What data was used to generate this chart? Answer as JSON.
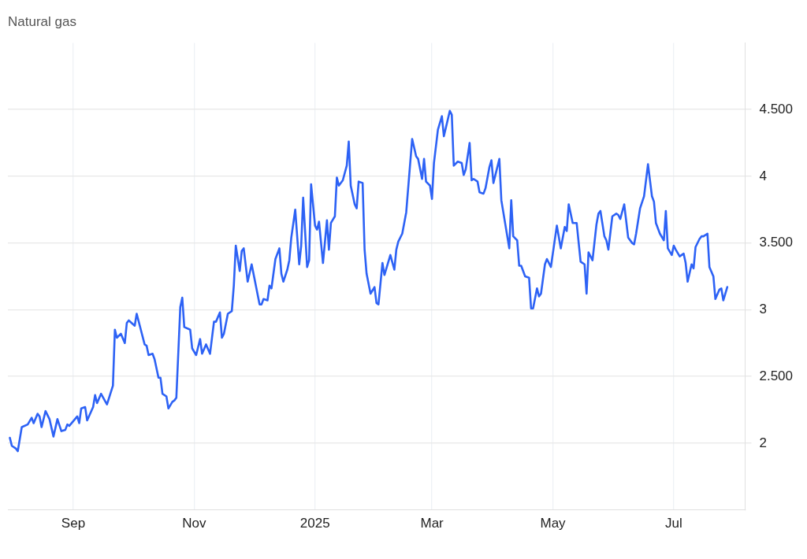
{
  "chart_data": {
    "type": "line",
    "title": "Natural gas",
    "xlim": [
      "2024-07-30",
      "2025-08-06"
    ],
    "xticks": [
      {
        "value": "2024-09",
        "label": "Sep"
      },
      {
        "value": "2024-11",
        "label": "Nov"
      },
      {
        "value": "2025",
        "label": "2025"
      },
      {
        "value": "2025-03",
        "label": "Mar"
      },
      {
        "value": "2025-05",
        "label": "May"
      },
      {
        "value": "2025-07",
        "label": "Jul"
      }
    ],
    "ylim": [
      1.5,
      5
    ],
    "yticks": [
      2,
      {
        "value": 2.5,
        "label": "2.500"
      },
      3,
      {
        "value": 3.5,
        "label": "3.500"
      },
      4,
      {
        "value": 4.5,
        "label": "4.500"
      }
    ],
    "grid": true,
    "legend": false,
    "marker": "none",
    "line_style": "solid",
    "series": [
      {
        "color": "#2d62f5",
        "x": [
          "2024-07-31",
          "2024-08-01",
          "2024-08-03",
          "2024-08-04",
          "2024-08-06",
          "2024-08-09",
          "2024-08-11",
          "2024-08-12",
          "2024-08-14",
          "2024-08-15",
          "2024-08-16",
          "2024-08-18",
          "2024-08-20",
          "2024-08-22",
          "2024-08-24",
          "2024-08-26",
          "2024-08-28",
          "2024-08-29",
          "2024-08-30",
          "2024-09-03",
          "2024-09-04",
          "2024-09-05",
          "2024-09-07",
          "2024-09-08",
          "2024-09-11",
          "2024-09-12",
          "2024-09-13",
          "2024-09-15",
          "2024-09-18",
          "2024-09-21",
          "2024-09-22",
          "2024-09-23",
          "2024-09-25",
          "2024-09-27",
          "2024-09-28",
          "2024-09-29",
          "2024-10-02",
          "2024-10-03",
          "2024-10-07",
          "2024-10-08",
          "2024-10-09",
          "2024-10-11",
          "2024-10-12",
          "2024-10-14",
          "2024-10-15",
          "2024-10-16",
          "2024-10-18",
          "2024-10-19",
          "2024-10-21",
          "2024-10-22",
          "2024-10-23",
          "2024-10-25",
          "2024-10-26",
          "2024-10-27",
          "2024-10-30",
          "2024-10-31",
          "2024-11-02",
          "2024-11-04",
          "2024-11-05",
          "2024-11-07",
          "2024-11-09",
          "2024-11-11",
          "2024-11-12",
          "2024-11-14",
          "2024-11-15",
          "2024-11-16",
          "2024-11-18",
          "2024-11-20",
          "2024-11-21",
          "2024-11-22",
          "2024-11-24",
          "2024-11-25",
          "2024-11-26",
          "2024-11-28",
          "2024-11-30",
          "2024-12-04",
          "2024-12-05",
          "2024-12-06",
          "2024-12-08",
          "2024-12-09",
          "2024-12-10",
          "2024-12-12",
          "2024-12-14",
          "2024-12-15",
          "2024-12-16",
          "2024-12-18",
          "2024-12-19",
          "2024-12-20",
          "2024-12-22",
          "2024-12-24",
          "2024-12-25",
          "2024-12-26",
          "2024-12-28",
          "2024-12-29",
          "2024-12-30",
          "2025-01-01",
          "2025-01-02",
          "2025-01-03",
          "2025-01-05",
          "2025-01-07",
          "2025-01-08",
          "2025-01-09",
          "2025-01-11",
          "2025-01-12",
          "2025-01-13",
          "2025-01-15",
          "2025-01-17",
          "2025-01-18",
          "2025-01-19",
          "2025-01-21",
          "2025-01-22",
          "2025-01-23",
          "2025-01-25",
          "2025-01-26",
          "2025-01-27",
          "2025-01-29",
          "2025-01-31",
          "2025-02-01",
          "2025-02-02",
          "2025-02-04",
          "2025-02-05",
          "2025-02-07",
          "2025-02-08",
          "2025-02-10",
          "2025-02-11",
          "2025-02-12",
          "2025-02-14",
          "2025-02-16",
          "2025-02-19",
          "2025-02-21",
          "2025-02-22",
          "2025-02-24",
          "2025-02-25",
          "2025-02-26",
          "2025-02-28",
          "2025-03-01",
          "2025-03-02",
          "2025-03-04",
          "2025-03-06",
          "2025-03-07",
          "2025-03-10",
          "2025-03-11",
          "2025-03-12",
          "2025-03-14",
          "2025-03-16",
          "2025-03-17",
          "2025-03-18",
          "2025-03-20",
          "2025-03-21",
          "2025-03-22",
          "2025-03-24",
          "2025-03-25",
          "2025-03-27",
          "2025-03-28",
          "2025-03-30",
          "2025-03-31",
          "2025-04-01",
          "2025-04-04",
          "2025-04-05",
          "2025-04-09",
          "2025-04-10",
          "2025-04-11",
          "2025-04-13",
          "2025-04-14",
          "2025-04-15",
          "2025-04-17",
          "2025-04-19",
          "2025-04-20",
          "2025-04-21",
          "2025-04-23",
          "2025-04-24",
          "2025-04-25",
          "2025-04-27",
          "2025-04-28",
          "2025-04-30",
          "2025-05-03",
          "2025-05-05",
          "2025-05-07",
          "2025-05-08",
          "2025-05-09",
          "2025-05-11",
          "2025-05-13",
          "2025-05-15",
          "2025-05-17",
          "2025-05-18",
          "2025-05-19",
          "2025-05-21",
          "2025-05-23",
          "2025-05-24",
          "2025-05-25",
          "2025-05-27",
          "2025-05-28",
          "2025-05-29",
          "2025-05-31",
          "2025-06-02",
          "2025-06-03",
          "2025-06-04",
          "2025-06-06",
          "2025-06-08",
          "2025-06-10",
          "2025-06-11",
          "2025-06-12",
          "2025-06-14",
          "2025-06-16",
          "2025-06-18",
          "2025-06-20",
          "2025-06-21",
          "2025-06-22",
          "2025-06-24",
          "2025-06-26",
          "2025-06-27",
          "2025-06-28",
          "2025-06-30",
          "2025-07-01",
          "2025-07-02",
          "2025-07-04",
          "2025-07-06",
          "2025-07-07",
          "2025-07-08",
          "2025-07-10",
          "2025-07-11",
          "2025-07-12",
          "2025-07-14",
          "2025-07-15",
          "2025-07-16",
          "2025-07-18",
          "2025-07-19",
          "2025-07-21",
          "2025-07-22",
          "2025-07-24",
          "2025-07-25",
          "2025-07-26",
          "2025-07-28"
        ],
        "values": [
          2.04,
          1.98,
          1.96,
          1.94,
          2.12,
          2.14,
          2.19,
          2.15,
          2.22,
          2.2,
          2.12,
          2.24,
          2.18,
          2.05,
          2.18,
          2.09,
          2.1,
          2.14,
          2.13,
          2.2,
          2.15,
          2.26,
          2.27,
          2.17,
          2.27,
          2.36,
          2.3,
          2.37,
          2.29,
          2.43,
          2.85,
          2.79,
          2.82,
          2.75,
          2.9,
          2.92,
          2.88,
          2.97,
          2.74,
          2.73,
          2.66,
          2.67,
          2.63,
          2.49,
          2.49,
          2.37,
          2.35,
          2.26,
          2.31,
          2.32,
          2.34,
          3.02,
          3.09,
          2.87,
          2.85,
          2.71,
          2.66,
          2.78,
          2.67,
          2.74,
          2.67,
          2.91,
          2.91,
          2.98,
          2.79,
          2.82,
          2.97,
          2.99,
          3.18,
          3.48,
          3.29,
          3.44,
          3.46,
          3.21,
          3.34,
          3.04,
          3.04,
          3.08,
          3.07,
          3.18,
          3.16,
          3.38,
          3.46,
          3.27,
          3.21,
          3.3,
          3.37,
          3.54,
          3.75,
          3.34,
          3.48,
          3.84,
          3.32,
          3.37,
          3.94,
          3.63,
          3.6,
          3.66,
          3.35,
          3.67,
          3.45,
          3.65,
          3.7,
          3.99,
          3.93,
          3.97,
          4.08,
          4.26,
          3.93,
          3.79,
          3.76,
          3.96,
          3.95,
          3.45,
          3.27,
          3.12,
          3.17,
          3.05,
          3.04,
          3.35,
          3.26,
          3.36,
          3.41,
          3.3,
          3.45,
          3.51,
          3.57,
          3.73,
          4.28,
          4.15,
          4.13,
          3.98,
          4.13,
          3.96,
          3.93,
          3.83,
          4.1,
          4.35,
          4.45,
          4.3,
          4.49,
          4.46,
          4.08,
          4.11,
          4.1,
          4.01,
          4.05,
          4.25,
          3.97,
          3.98,
          3.96,
          3.88,
          3.87,
          3.91,
          4.07,
          4.12,
          3.95,
          4.13,
          3.82,
          3.46,
          3.82,
          3.55,
          3.52,
          3.33,
          3.33,
          3.25,
          3.24,
          3.01,
          3.01,
          3.16,
          3.1,
          3.12,
          3.34,
          3.38,
          3.32,
          3.63,
          3.46,
          3.62,
          3.59,
          3.79,
          3.65,
          3.65,
          3.36,
          3.34,
          3.12,
          3.43,
          3.37,
          3.64,
          3.72,
          3.74,
          3.55,
          3.52,
          3.45,
          3.7,
          3.72,
          3.71,
          3.68,
          3.79,
          3.54,
          3.5,
          3.49,
          3.57,
          3.76,
          3.85,
          4.09,
          3.85,
          3.81,
          3.65,
          3.57,
          3.52,
          3.74,
          3.46,
          3.41,
          3.48,
          3.45,
          3.4,
          3.42,
          3.35,
          3.21,
          3.34,
          3.31,
          3.47,
          3.53,
          3.55,
          3.55,
          3.57,
          3.32,
          3.25,
          3.08,
          3.15,
          3.16,
          3.07,
          3.17
        ]
      }
    ]
  }
}
